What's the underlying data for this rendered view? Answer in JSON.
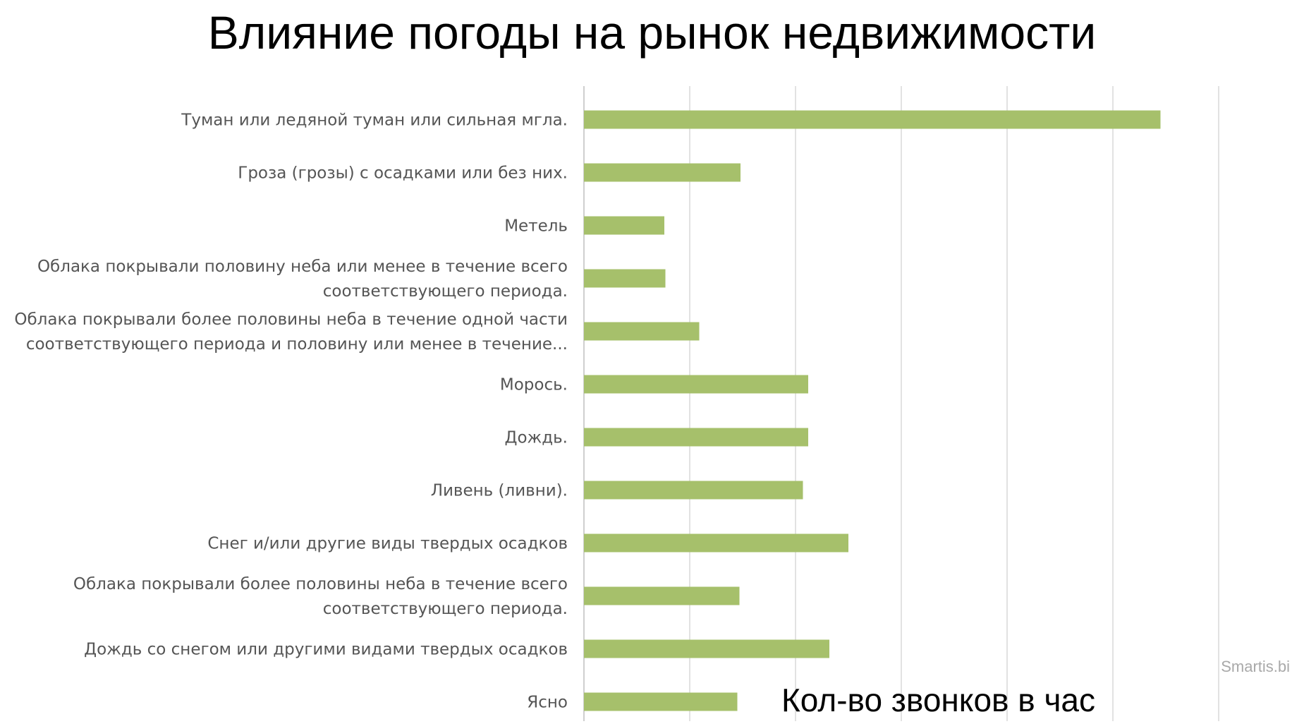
{
  "chart_data": {
    "type": "bar",
    "orientation": "horizontal",
    "title": "Влияние погоды на рынок недвижимости",
    "xlabel": "Кол-во звонков в час",
    "ylabel": "",
    "xlim": [
      0,
      5.5
    ],
    "grid": true,
    "categories": [
      [
        "Туман или ледяной туман или сильная мгла."
      ],
      [
        "Гроза (грозы) с осадками или без них."
      ],
      [
        "Метель"
      ],
      [
        "Облака покрывали половину неба или менее в течение всего",
        "соответствующего периода."
      ],
      [
        "Облака покрывали более половины неба в течение одной части",
        "соответствующего периода и половину или менее в течение..."
      ],
      [
        "Морось."
      ],
      [
        "Дождь."
      ],
      [
        "Ливень (ливни)."
      ],
      [
        "Снег и/или другие виды твердых осадков"
      ],
      [
        "Облака покрывали более половины неба в течение всего",
        "соответствующего периода."
      ],
      [
        "Дождь со снегом или другими видами твердых осадков"
      ],
      [
        "Ясно"
      ]
    ],
    "values": [
      5.45,
      1.48,
      0.76,
      0.77,
      1.09,
      2.12,
      2.12,
      2.07,
      2.5,
      1.47,
      2.32,
      1.45
    ],
    "bar_color": "#a6c06b",
    "grid_color": "#d9d9d9"
  },
  "watermark": "Smartis.bi"
}
